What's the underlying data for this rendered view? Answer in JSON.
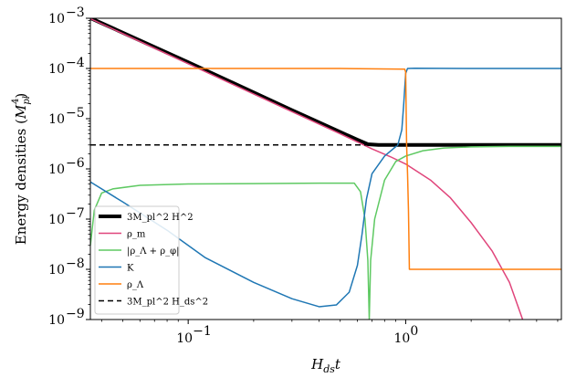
{
  "chart_data": {
    "type": "line",
    "xscale": "log",
    "yscale": "log",
    "xlim": [
      0.0355,
      5.2
    ],
    "ylim": [
      1e-09,
      0.001
    ],
    "xlabel": "H_ds t",
    "ylabel": "Energy densities (M_pl^4)",
    "x_ticks": [
      {
        "value": 0.1,
        "base": "10",
        "exp": "−1"
      },
      {
        "value": 1,
        "base": "10",
        "exp": "0"
      }
    ],
    "y_ticks": [
      {
        "value": 1e-09,
        "base": "10",
        "exp": "−9"
      },
      {
        "value": 1e-08,
        "base": "10",
        "exp": "−8"
      },
      {
        "value": 1e-07,
        "base": "10",
        "exp": "−7"
      },
      {
        "value": 1e-06,
        "base": "10",
        "exp": "−6"
      },
      {
        "value": 1e-05,
        "base": "10",
        "exp": "−5"
      },
      {
        "value": 0.0001,
        "base": "10",
        "exp": "−4"
      },
      {
        "value": 0.001,
        "base": "10",
        "exp": "−3"
      }
    ],
    "legend": {
      "position": "lower-left",
      "entries": [
        {
          "key": "hubble",
          "label": "3M_pl^2 H^2"
        },
        {
          "key": "rho_m",
          "label": "ρ_m"
        },
        {
          "key": "rho_sum",
          "label": "|ρ_Λ + ρ_φ|"
        },
        {
          "key": "K",
          "label": "K"
        },
        {
          "key": "rho_lambda",
          "label": "ρ_Λ"
        },
        {
          "key": "ds",
          "label": "3M_pl^2 H_ds^2"
        }
      ]
    },
    "series": [
      {
        "name": "3M_pl^2 H^2",
        "key": "hubble",
        "color": "#000000",
        "width": 4,
        "dash": "",
        "points": [
          [
            0.0355,
            0.00101
          ],
          [
            0.1,
            0.000133
          ],
          [
            0.3,
            1.48e-05
          ],
          [
            0.6,
            3.8e-06
          ],
          [
            0.67,
            3.1e-06
          ],
          [
            0.75,
            3e-06
          ],
          [
            1.0,
            3e-06
          ],
          [
            2.0,
            3e-06
          ],
          [
            5.2,
            3e-06
          ]
        ]
      },
      {
        "name": "ρ_m",
        "key": "rho_m",
        "color": "#e0457b",
        "width": 1.5,
        "dash": "",
        "points": [
          [
            0.0355,
            0.00098
          ],
          [
            0.1,
            0.000124
          ],
          [
            0.3,
            1.38e-05
          ],
          [
            0.5,
            5e-06
          ],
          [
            0.7,
            2.5e-06
          ],
          [
            0.85,
            1.75e-06
          ],
          [
            1.0,
            1.25e-06
          ],
          [
            1.3,
            6e-07
          ],
          [
            1.6,
            2.7e-07
          ],
          [
            2.0,
            8.5e-08
          ],
          [
            2.5,
            2.3e-08
          ],
          [
            3.0,
            5.5e-09
          ],
          [
            3.45,
            1e-09
          ]
        ]
      },
      {
        "name": "|ρ_Λ + ρ_φ|",
        "key": "rho_sum",
        "color": "#5ec962",
        "width": 1.5,
        "dash": "",
        "points": [
          [
            0.0355,
            3e-08
          ],
          [
            0.037,
            1.5e-07
          ],
          [
            0.04,
            3.3e-07
          ],
          [
            0.045,
            4e-07
          ],
          [
            0.06,
            4.7e-07
          ],
          [
            0.1,
            5e-07
          ],
          [
            0.2,
            5.1e-07
          ],
          [
            0.4,
            5.2e-07
          ],
          [
            0.58,
            5.2e-07
          ],
          [
            0.62,
            3.5e-07
          ],
          [
            0.65,
            1e-07
          ],
          [
            0.67,
            1.5e-08
          ],
          [
            0.68,
            1e-09
          ],
          [
            0.69,
            1.5e-08
          ],
          [
            0.72,
            1e-07
          ],
          [
            0.8,
            6e-07
          ],
          [
            0.9,
            1.4e-06
          ],
          [
            1.0,
            1.8e-06
          ],
          [
            1.2,
            2.3e-06
          ],
          [
            1.5,
            2.6e-06
          ],
          [
            2.0,
            2.75e-06
          ],
          [
            3.0,
            2.8e-06
          ],
          [
            5.2,
            2.8e-06
          ]
        ]
      },
      {
        "name": "K",
        "key": "K",
        "color": "#1f77b4",
        "width": 1.5,
        "dash": "",
        "points": [
          [
            0.0355,
            5.5e-07
          ],
          [
            0.05,
            2.2e-07
          ],
          [
            0.08,
            6e-08
          ],
          [
            0.12,
            1.7e-08
          ],
          [
            0.2,
            5.5e-09
          ],
          [
            0.3,
            2.6e-09
          ],
          [
            0.4,
            1.8e-09
          ],
          [
            0.48,
            1.95e-09
          ],
          [
            0.55,
            3.5e-09
          ],
          [
            0.6,
            1.2e-08
          ],
          [
            0.63,
            5e-08
          ],
          [
            0.66,
            2.5e-07
          ],
          [
            0.7,
            8e-07
          ],
          [
            0.8,
            1.8e-06
          ],
          [
            0.92,
            3e-06
          ],
          [
            0.96,
            6e-06
          ],
          [
            0.98,
            2e-05
          ],
          [
            1.0,
            8e-05
          ],
          [
            1.02,
            0.0001
          ],
          [
            1.1,
            0.000101
          ],
          [
            2.0,
            0.0001
          ],
          [
            5.2,
            0.0001
          ]
        ]
      },
      {
        "name": "ρ_Λ",
        "key": "rho_lambda",
        "color": "#ff7f0e",
        "width": 1.5,
        "dash": "",
        "points": [
          [
            0.0355,
            0.0001
          ],
          [
            0.5,
            0.0001
          ],
          [
            0.99,
            9.7e-05
          ],
          [
            1.0,
            8.5e-05
          ],
          [
            1.01,
            3e-06
          ],
          [
            1.02,
            8e-07
          ],
          [
            1.03,
            1.5e-07
          ],
          [
            1.04,
            1e-08
          ],
          [
            1.2,
            1e-08
          ],
          [
            5.2,
            1e-08
          ]
        ]
      },
      {
        "name": "3M_pl^2 H_ds^2",
        "key": "ds",
        "color": "#000000",
        "width": 1.5,
        "dash": "6,4",
        "points": [
          [
            0.0355,
            3e-06
          ],
          [
            1.0,
            3e-06
          ]
        ]
      }
    ]
  }
}
